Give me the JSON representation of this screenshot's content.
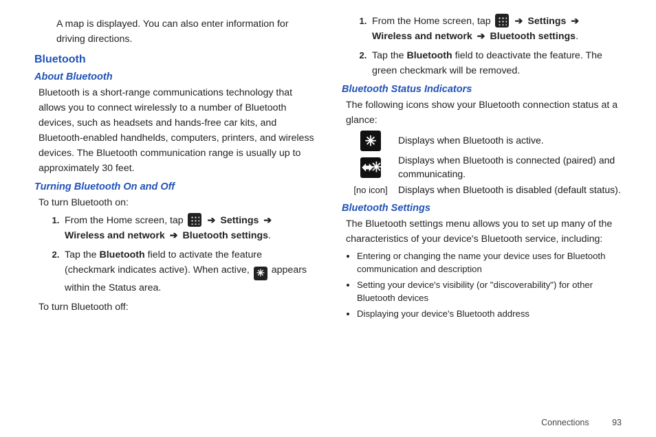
{
  "intro": "A map is displayed. You can also enter information for driving directions.",
  "h_bluetooth": "Bluetooth",
  "h_about": "About Bluetooth",
  "about_bluetooth": "Bluetooth is a short-range communications technology that allows you to connect wirelessly to a number of Bluetooth devices, such as headsets and hands-free car kits, and Bluetooth-enabled handhelds, computers, printers, and wireless devices. The Bluetooth communication range is usually up to approximately 30 feet.",
  "h_turning": "Turning Bluetooth On and Off",
  "turn_on_label": "To turn Bluetooth on:",
  "step_a_pre": "From the Home screen, tap ",
  "step_a_settings": "Settings",
  "step_a_wireless": "Wireless and network",
  "step_a_btsettings": "Bluetooth settings",
  "step_b_pre": "Tap the ",
  "step_b_bold": "Bluetooth",
  "step_b_mid": " field to activate the feature (checkmark indicates active). When active, ",
  "step_b_post": " appears within the Status area.",
  "turn_off_label": "To turn Bluetooth off:",
  "off_b_mid": " field to deactivate the feature. The green checkmark will be removed.",
  "h_status": "Bluetooth Status Indicators",
  "status_intro": "The following icons show your Bluetooth connection status at a glance:",
  "status1": "Displays when Bluetooth is active.",
  "status2": "Displays when Bluetooth is connected (paired) and communicating.",
  "status3": "Displays when Bluetooth is disabled (default status).",
  "noicon": "[no icon]",
  "h_btsettings": "Bluetooth Settings",
  "btsettings_intro": "The Bluetooth settings menu allows you to set up many of the characteristics of your device's Bluetooth service, including:",
  "bul1": "Entering or changing the name your device uses for Bluetooth communication and description",
  "bul2": "Setting your device's visibility (or \"discoverability\") for other Bluetooth devices",
  "bul3": "Displaying your device's Bluetooth address",
  "footer_section": "Connections",
  "footer_page": "93",
  "arrow": "➔",
  "bt_glyph": "✱",
  "bt_conn_glyph": "⇆"
}
